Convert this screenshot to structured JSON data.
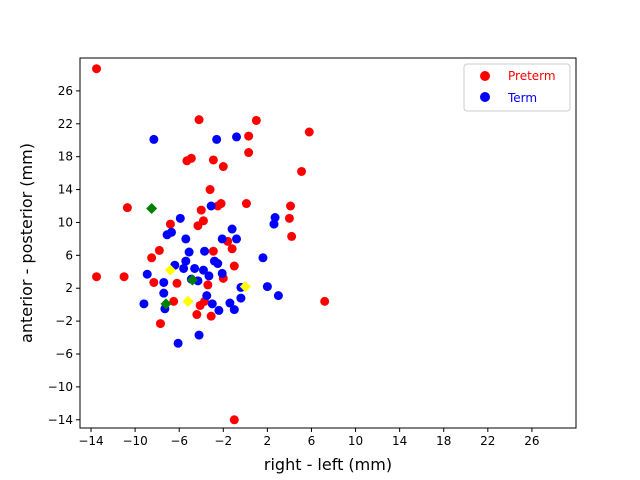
{
  "chart_data": {
    "type": "scatter",
    "title": "",
    "xlabel": "right - left (mm)",
    "ylabel": "anterior - posterior (mm)",
    "xlim": [
      -15,
      30
    ],
    "ylim": [
      -15,
      30
    ],
    "xticks": [
      -14,
      -10,
      -6,
      -2,
      2,
      6,
      10,
      14,
      18,
      22,
      26
    ],
    "yticks": [
      -14,
      -10,
      -6,
      -2,
      2,
      6,
      10,
      14,
      18,
      22,
      26
    ],
    "xtick_labels": [
      "−14",
      "−10",
      "−6",
      "−2",
      "2",
      "6",
      "10",
      "14",
      "18",
      "22",
      "26"
    ],
    "ytick_labels": [
      "−14",
      "−10",
      "−6",
      "−2",
      "2",
      "6",
      "10",
      "14",
      "18",
      "22",
      "26"
    ],
    "grid": false,
    "legend_position": "top-right",
    "series": [
      {
        "name": "Preterm",
        "color": "#ff0000",
        "marker": "circle",
        "points": [
          [
            -13.5,
            28.7
          ],
          [
            -13.5,
            3.4
          ],
          [
            -11.0,
            3.4
          ],
          [
            -10.7,
            11.8
          ],
          [
            -8.5,
            5.7
          ],
          [
            -8.3,
            2.7
          ],
          [
            -7.8,
            6.6
          ],
          [
            -7.7,
            -2.3
          ],
          [
            -6.8,
            9.8
          ],
          [
            -6.5,
            0.4
          ],
          [
            -6.2,
            2.6
          ],
          [
            -5.3,
            17.5
          ],
          [
            -4.9,
            17.8
          ],
          [
            -4.4,
            -1.2
          ],
          [
            -4.3,
            9.6
          ],
          [
            -4.2,
            22.5
          ],
          [
            -4.1,
            -0.1
          ],
          [
            -4.0,
            11.5
          ],
          [
            -3.8,
            10.2
          ],
          [
            -3.7,
            0.4
          ],
          [
            -3.4,
            2.4
          ],
          [
            -3.2,
            14.0
          ],
          [
            -3.1,
            -1.4
          ],
          [
            -2.9,
            17.6
          ],
          [
            -2.9,
            6.5
          ],
          [
            -2.5,
            12.0
          ],
          [
            -2.2,
            12.3
          ],
          [
            -2.0,
            16.8
          ],
          [
            -2.0,
            3.2
          ],
          [
            -1.6,
            7.7
          ],
          [
            -1.2,
            6.8
          ],
          [
            -1.0,
            4.7
          ],
          [
            -1.0,
            -14.0
          ],
          [
            0.3,
            20.5
          ],
          [
            0.1,
            12.3
          ],
          [
            0.3,
            18.5
          ],
          [
            1.0,
            22.4
          ],
          [
            4.1,
            12.0
          ],
          [
            4.0,
            10.5
          ],
          [
            4.2,
            8.3
          ],
          [
            5.1,
            16.2
          ],
          [
            5.8,
            21.0
          ],
          [
            7.2,
            0.4
          ]
        ]
      },
      {
        "name": "Term",
        "color": "#0000ff",
        "marker": "circle",
        "points": [
          [
            -9.2,
            0.1
          ],
          [
            -8.9,
            3.7
          ],
          [
            -8.3,
            20.1
          ],
          [
            -7.4,
            2.7
          ],
          [
            -7.4,
            1.4
          ],
          [
            -7.3,
            -0.5
          ],
          [
            -7.1,
            8.5
          ],
          [
            -6.7,
            8.8
          ],
          [
            -6.4,
            4.8
          ],
          [
            -6.1,
            -4.7
          ],
          [
            -5.9,
            10.5
          ],
          [
            -5.6,
            4.4
          ],
          [
            -5.4,
            8.0
          ],
          [
            -5.4,
            5.3
          ],
          [
            -5.1,
            6.4
          ],
          [
            -4.9,
            3.1
          ],
          [
            -4.6,
            4.4
          ],
          [
            -4.3,
            2.9
          ],
          [
            -4.2,
            -3.7
          ],
          [
            -3.8,
            4.2
          ],
          [
            -3.7,
            6.5
          ],
          [
            -3.5,
            1.1
          ],
          [
            -3.3,
            3.5
          ],
          [
            -3.1,
            12.0
          ],
          [
            -3.0,
            0.1
          ],
          [
            -2.8,
            5.3
          ],
          [
            -2.6,
            20.1
          ],
          [
            -2.5,
            5.0
          ],
          [
            -2.4,
            -0.7
          ],
          [
            -2.1,
            3.8
          ],
          [
            -2.1,
            8.0
          ],
          [
            -1.4,
            0.2
          ],
          [
            -1.2,
            9.2
          ],
          [
            -1.0,
            -0.6
          ],
          [
            -0.8,
            8.0
          ],
          [
            -0.8,
            20.4
          ],
          [
            -0.4,
            0.8
          ],
          [
            -0.4,
            2.1
          ],
          [
            1.6,
            5.7
          ],
          [
            2.0,
            2.2
          ],
          [
            2.6,
            9.8
          ],
          [
            2.7,
            10.6
          ],
          [
            3.0,
            1.1
          ]
        ]
      },
      {
        "name": "",
        "color": "#008000",
        "marker": "diamond",
        "points": [
          [
            -8.5,
            11.7
          ],
          [
            -7.2,
            0.1
          ],
          [
            -4.8,
            3.0
          ]
        ]
      },
      {
        "name": "",
        "color": "#ffff00",
        "marker": "diamond",
        "points": [
          [
            -6.8,
            4.2
          ],
          [
            -5.2,
            0.4
          ],
          [
            0.0,
            2.2
          ]
        ]
      }
    ]
  }
}
